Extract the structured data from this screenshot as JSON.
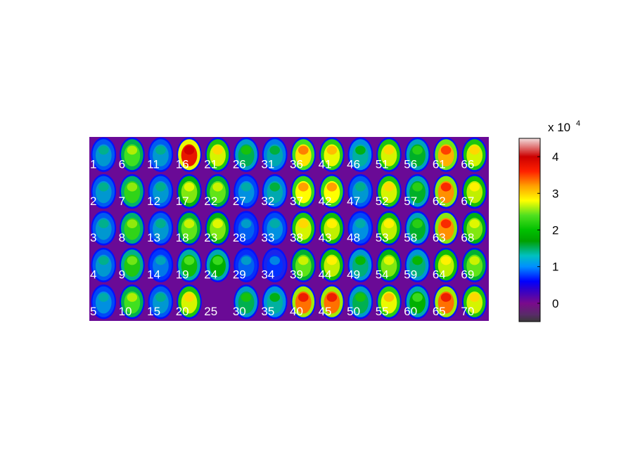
{
  "chart_data": {
    "type": "heatmap",
    "description_layout": "montage grid",
    "grid": {
      "rows": 5,
      "cols": 14
    },
    "tile_labels": [
      "1",
      "2",
      "3",
      "4",
      "5",
      "6",
      "7",
      "8",
      "9",
      "10",
      "11",
      "12",
      "13",
      "14",
      "15",
      "16",
      "17",
      "18",
      "19",
      "20",
      "21",
      "22",
      "23",
      "24",
      "25",
      "26",
      "27",
      "28",
      "29",
      "30",
      "31",
      "32",
      "33",
      "34",
      "35",
      "36",
      "37",
      "38",
      "39",
      "40",
      "41",
      "42",
      "43",
      "44",
      "45",
      "46",
      "47",
      "48",
      "49",
      "50",
      "51",
      "52",
      "53",
      "54",
      "55",
      "56",
      "57",
      "58",
      "59",
      "60",
      "61",
      "62",
      "63",
      "64",
      "65",
      "66",
      "67",
      "68",
      "69",
      "70"
    ],
    "empty_tiles": [
      "25"
    ],
    "tile_intensity": [
      1.3,
      1.3,
      1.3,
      1.3,
      1.2,
      2.4,
      2.3,
      2.3,
      2.2,
      2.4,
      1.3,
      1.3,
      1.3,
      1.1,
      1.3,
      4.0,
      2.6,
      2.5,
      2.1,
      2.9,
      2.9,
      2.5,
      2.6,
      2.0,
      0.0,
      1.8,
      1.2,
      1.0,
      1.0,
      1.8,
      1.5,
      1.5,
      1.2,
      0.8,
      1.6,
      3.2,
      3.1,
      2.9,
      2.5,
      3.6,
      3.0,
      3.1,
      2.8,
      2.8,
      3.6,
      1.6,
      1.3,
      1.2,
      1.7,
      1.8,
      2.9,
      2.9,
      2.8,
      2.6,
      3.0,
      1.9,
      1.9,
      1.9,
      1.7,
      2.0,
      3.4,
      3.5,
      3.5,
      2.8,
      3.6,
      2.9,
      2.8,
      2.6,
      2.5,
      2.9
    ],
    "colorbar": {
      "ticks": [
        "0",
        "1",
        "2",
        "3",
        "4"
      ],
      "tick_values": [
        0,
        1,
        2,
        3,
        4
      ],
      "range": [
        -0.5,
        4.5
      ],
      "multiplier_base": "x 10",
      "multiplier_exponent": "4"
    },
    "colormap": [
      "#3a3a3a",
      "#7a0a8c",
      "#6a00b0",
      "#0000ff",
      "#0090ff",
      "#00c0c0",
      "#00b000",
      "#40e020",
      "#ffff00",
      "#ffa000",
      "#ff0000",
      "#cc0000",
      "#f0d0d0"
    ]
  }
}
